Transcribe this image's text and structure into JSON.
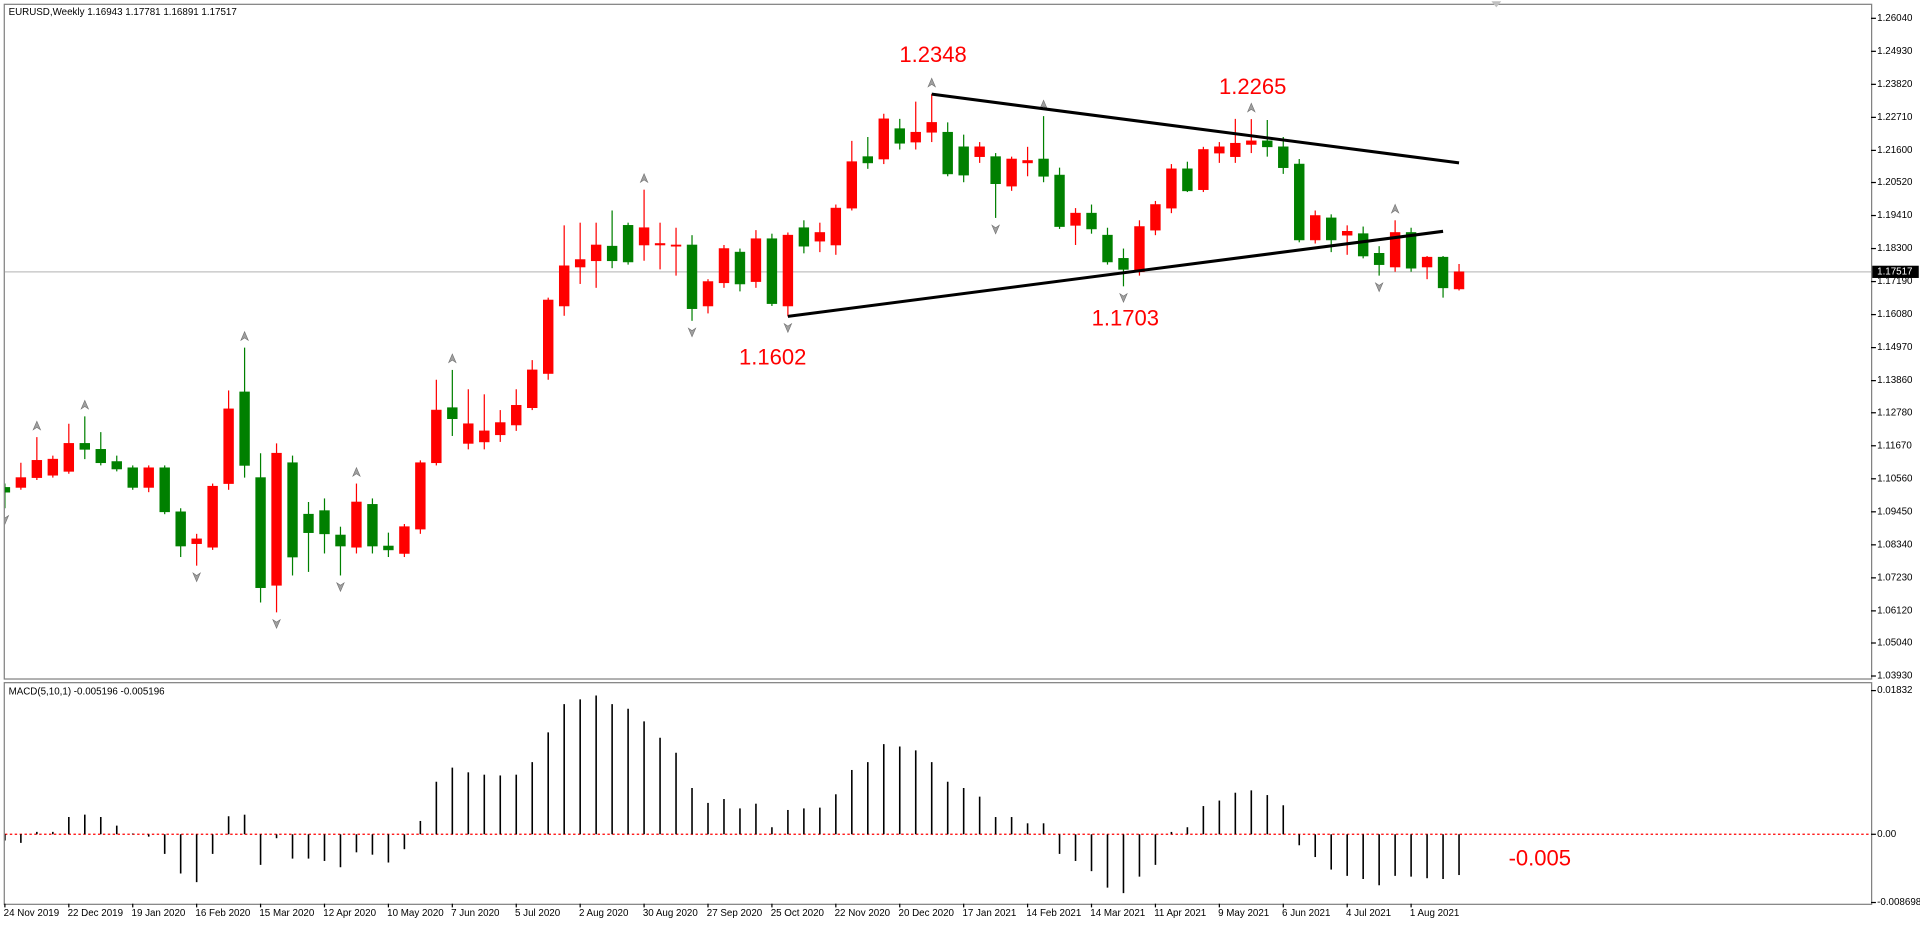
{
  "chart_data": [
    {
      "type": "candlestick",
      "title": "EURUSD,Weekly  1.16943 1.17781 1.16891 1.17517",
      "categories": [
        "24 Nov 2019",
        null,
        null,
        null,
        "22 Dec 2019",
        null,
        null,
        null,
        "19 Jan 2020",
        null,
        null,
        null,
        "16 Feb 2020",
        null,
        null,
        null,
        "15 Mar 2020",
        null,
        null,
        null,
        "12 Apr 2020",
        null,
        null,
        null,
        "10 May 2020",
        null,
        null,
        null,
        "7 Jun 2020",
        null,
        null,
        null,
        "5 Jul 2020",
        null,
        null,
        null,
        "2 Aug 2020",
        null,
        null,
        null,
        "30 Aug 2020",
        null,
        null,
        null,
        "27 Sep 2020",
        null,
        null,
        null,
        "25 Oct 2020",
        null,
        null,
        null,
        "22 Nov 2020",
        null,
        null,
        null,
        "20 Dec 2020",
        null,
        null,
        null,
        "17 Jan 2021",
        null,
        null,
        null,
        "14 Feb 2021",
        null,
        null,
        null,
        "14 Mar 2021",
        null,
        null,
        null,
        "11 Apr 2021",
        null,
        null,
        null,
        "9 May 2021",
        null,
        null,
        null,
        "6 Jun 2021",
        null,
        null,
        null,
        "4 Jul 2021",
        null,
        null,
        null,
        "1 Aug 2021",
        null,
        null,
        null
      ],
      "open": [
        1.1027,
        1.1027,
        1.106,
        1.1068,
        1.1081,
        1.1175,
        1.1155,
        1.1114,
        1.1093,
        1.1027,
        1.1093,
        1.0945,
        1.0838,
        1.0826,
        1.104,
        1.1348,
        1.106,
        1.0698,
        1.111,
        1.0937,
        1.0949,
        1.0867,
        1.0826,
        1.097,
        1.083,
        1.0805,
        1.0887,
        1.111,
        1.1295,
        1.1175,
        1.118,
        1.1204,
        1.1237,
        1.1295,
        1.141,
        1.1637,
        1.1768,
        1.1789,
        1.1838,
        1.1908,
        1.1842,
        1.1842,
        1.1838,
        1.1842,
        1.1637,
        1.1715,
        1.1818,
        1.1719,
        1.1863,
        1.1637,
        1.19,
        1.1855,
        1.1842,
        1.1966,
        1.2139,
        1.2131,
        1.2233,
        1.2188,
        1.2221,
        1.2221,
        1.2172,
        1.2139,
        1.2139,
        1.204,
        1.2118,
        1.2131,
        1.2077,
        1.1908,
        1.1949,
        1.1875,
        1.1797,
        1.1752,
        1.1892,
        1.1966,
        1.2098,
        1.2028,
        1.2151,
        1.2139,
        1.218,
        1.2192,
        1.2172,
        1.2114,
        1.1859,
        1.1933,
        1.1875,
        1.188,
        1.1814,
        1.1768,
        1.1884,
        1.1768,
        1.1801,
        1.16943
      ],
      "high": [
        1.104,
        1.111,
        1.1196,
        1.1134,
        1.1241,
        1.1266,
        1.1213,
        1.1134,
        1.1101,
        1.1101,
        1.1101,
        1.0957,
        1.0871,
        1.104,
        1.1353,
        1.1497,
        1.1142,
        1.1175,
        1.1134,
        1.0978,
        1.099,
        1.0895,
        1.104,
        1.099,
        1.0875,
        1.0904,
        1.1118,
        1.1389,
        1.1422,
        1.1357,
        1.134,
        1.1287,
        1.1357,
        1.1455,
        1.1665,
        1.1908,
        1.1917,
        1.1917,
        1.1958,
        1.1917,
        1.2028,
        1.1917,
        1.19,
        1.1875,
        1.1727,
        1.1842,
        1.183,
        1.1892,
        1.188,
        1.1884,
        1.1925,
        1.1917,
        1.1978,
        1.2192,
        1.2205,
        1.2283,
        1.2266,
        1.2324,
        1.2349,
        1.2254,
        1.2213,
        1.2188,
        1.2151,
        1.2139,
        1.2172,
        1.2275,
        1.2102,
        1.1966,
        1.1978,
        1.19,
        1.183,
        1.1925,
        1.199,
        1.2114,
        1.2122,
        1.2172,
        1.2188,
        1.2266,
        1.2265,
        1.2262,
        1.2205,
        1.2131,
        1.1958,
        1.1945,
        1.1908,
        1.1904,
        1.1838,
        1.1925,
        1.19,
        1.1805,
        1.1805,
        1.17781
      ],
      "low": [
        1.0957,
        1.1019,
        1.1052,
        1.106,
        1.1073,
        1.1122,
        1.1101,
        1.1081,
        1.1019,
        1.1011,
        1.0937,
        1.0793,
        1.0764,
        1.0817,
        1.1019,
        1.106,
        1.064,
        1.0607,
        1.0731,
        1.0743,
        1.0805,
        1.0731,
        1.0805,
        1.0805,
        1.0793,
        1.0793,
        1.0871,
        1.1101,
        1.12,
        1.1155,
        1.1155,
        1.118,
        1.1217,
        1.1287,
        1.1389,
        1.1604,
        1.1711,
        1.1698,
        1.1764,
        1.1776,
        1.1789,
        1.176,
        1.1739,
        1.1587,
        1.1612,
        1.1698,
        1.1686,
        1.1698,
        1.1637,
        1.1602,
        1.1814,
        1.1818,
        1.1809,
        1.1958,
        1.2098,
        1.2114,
        1.2163,
        1.2163,
        1.2188,
        1.2073,
        1.2053,
        1.2118,
        1.1933,
        1.2024,
        1.2073,
        1.2053,
        1.1896,
        1.1842,
        1.188,
        1.1776,
        1.1703,
        1.1739,
        1.1875,
        1.1949,
        1.202,
        1.202,
        1.2118,
        1.2118,
        1.2151,
        1.2139,
        1.2081,
        1.1851,
        1.1847,
        1.1818,
        1.1809,
        1.1797,
        1.1739,
        1.1752,
        1.1752,
        1.1727,
        1.1665,
        1.16891
      ],
      "close": [
        1.1011,
        1.106,
        1.1118,
        1.1122,
        1.1175,
        1.1155,
        1.111,
        1.1089,
        1.1027,
        1.1093,
        1.0945,
        1.083,
        1.0854,
        1.1031,
        1.1291,
        1.1101,
        1.069,
        1.1142,
        1.0793,
        1.0875,
        1.0871,
        1.083,
        1.0978,
        1.083,
        1.0817,
        1.0895,
        1.111,
        1.1287,
        1.1258,
        1.1241,
        1.1217,
        1.1245,
        1.1303,
        1.1422,
        1.1657,
        1.1772,
        1.1793,
        1.1842,
        1.1789,
        1.1785,
        1.19,
        1.1847,
        1.1842,
        1.1628,
        1.1719,
        1.183,
        1.1711,
        1.1863,
        1.1645,
        1.1875,
        1.1838,
        1.1884,
        1.1966,
        1.2122,
        1.2118,
        1.2266,
        1.2184,
        1.2221,
        1.2254,
        1.2081,
        1.2077,
        1.2172,
        1.2048,
        1.2131,
        1.2126,
        1.2073,
        1.1904,
        1.1949,
        1.1896,
        1.1785,
        1.176,
        1.1904,
        1.1978,
        1.2098,
        1.2024,
        1.2163,
        1.2172,
        1.2184,
        1.2192,
        1.2172,
        1.2102,
        1.1859,
        1.1941,
        1.1859,
        1.1888,
        1.1805,
        1.1776,
        1.1884,
        1.1764,
        1.1801,
        1.1698,
        1.17517
      ],
      "up_color": "#ff0000",
      "down_color": "#008000",
      "ylim": [
        1.0385,
        1.2649
      ],
      "yticks": [
        {
          "value": 1.2604,
          "label": "1.26040"
        },
        {
          "value": 1.2493,
          "label": "1.24930"
        },
        {
          "value": 1.2382,
          "label": "1.23820"
        },
        {
          "value": 1.2271,
          "label": "1.22710"
        },
        {
          "value": 1.216,
          "label": "1.21600"
        },
        {
          "value": 1.2052,
          "label": "1.20520"
        },
        {
          "value": 1.1941,
          "label": "1.19410"
        },
        {
          "value": 1.183,
          "label": "1.18300"
        },
        {
          "value": 1.1719,
          "label": "1.17190"
        },
        {
          "value": 1.1608,
          "label": "1.16080"
        },
        {
          "value": 1.1497,
          "label": "1.14970"
        },
        {
          "value": 1.1386,
          "label": "1.13860"
        },
        {
          "value": 1.1278,
          "label": "1.12780"
        },
        {
          "value": 1.1167,
          "label": "1.11670"
        },
        {
          "value": 1.1056,
          "label": "1.10560"
        },
        {
          "value": 1.0945,
          "label": "1.09450"
        },
        {
          "value": 1.0834,
          "label": "1.08340"
        },
        {
          "value": 1.0723,
          "label": "1.07230"
        },
        {
          "value": 1.0612,
          "label": "1.06120"
        },
        {
          "value": 1.0504,
          "label": "1.05040"
        },
        {
          "value": 1.0393,
          "label": "1.03930"
        }
      ],
      "last_price": 1.17517,
      "trendlines": [
        {
          "x": [
            58,
            91
          ],
          "y": [
            1.2349,
            1.2118
          ]
        },
        {
          "x": [
            49,
            90
          ],
          "y": [
            1.1602,
            1.1888
          ]
        }
      ],
      "fractals": {
        "up": [
          2,
          5,
          15,
          22,
          28,
          40,
          58,
          65,
          78,
          87
        ],
        "down": [
          0,
          12,
          17,
          21,
          43,
          49,
          62,
          70,
          86
        ]
      },
      "annotations": [
        "1.2348",
        "1.2265",
        "1.1602",
        "1.1703"
      ]
    },
    {
      "type": "bar",
      "title": "MACD(5,10,1) -0.005196 -0.005196",
      "values": [
        -0.0008,
        -0.0011,
        0.0003,
        0.0003,
        0.0022,
        0.0025,
        0.0022,
        0.0011,
        0.0001,
        -0.0003,
        -0.0025,
        -0.005,
        -0.0061,
        -0.0025,
        0.0023,
        0.0025,
        -0.0039,
        -0.0005,
        -0.0031,
        -0.0031,
        -0.0034,
        -0.0042,
        -0.0023,
        -0.0026,
        -0.0036,
        -0.0019,
        0.0017,
        0.0067,
        0.0085,
        0.0079,
        0.0076,
        0.0075,
        0.0076,
        0.0092,
        0.013,
        0.0166,
        0.0172,
        0.0177,
        0.0166,
        0.016,
        0.0144,
        0.0123,
        0.0104,
        0.0059,
        0.004,
        0.0045,
        0.0033,
        0.0039,
        0.0009,
        0.0031,
        0.0033,
        0.0034,
        0.0051,
        0.0082,
        0.0092,
        0.0115,
        0.0112,
        0.0107,
        0.0092,
        0.0067,
        0.0059,
        0.0048,
        0.0022,
        0.0022,
        0.0014,
        0.0014,
        -0.0025,
        -0.0034,
        -0.0047,
        -0.0068,
        -0.0075,
        -0.0054,
        -0.0039,
        0.0003,
        0.0009,
        0.0036,
        0.0043,
        0.0053,
        0.0056,
        0.005,
        0.0037,
        -0.0014,
        -0.0029,
        -0.0045,
        -0.0053,
        -0.0057,
        -0.0065,
        -0.0053,
        -0.0054,
        -0.0056,
        -0.0057,
        -0.005196
      ],
      "color": "#000000",
      "zero_color": "#ff0000",
      "ylim": [
        -0.00885,
        0.01925
      ],
      "yticks": [
        0.01832,
        {
          "value": 0,
          "label": "0.00"
        },
        -0.008698
      ],
      "annotations": [
        "-0.005"
      ]
    }
  ]
}
